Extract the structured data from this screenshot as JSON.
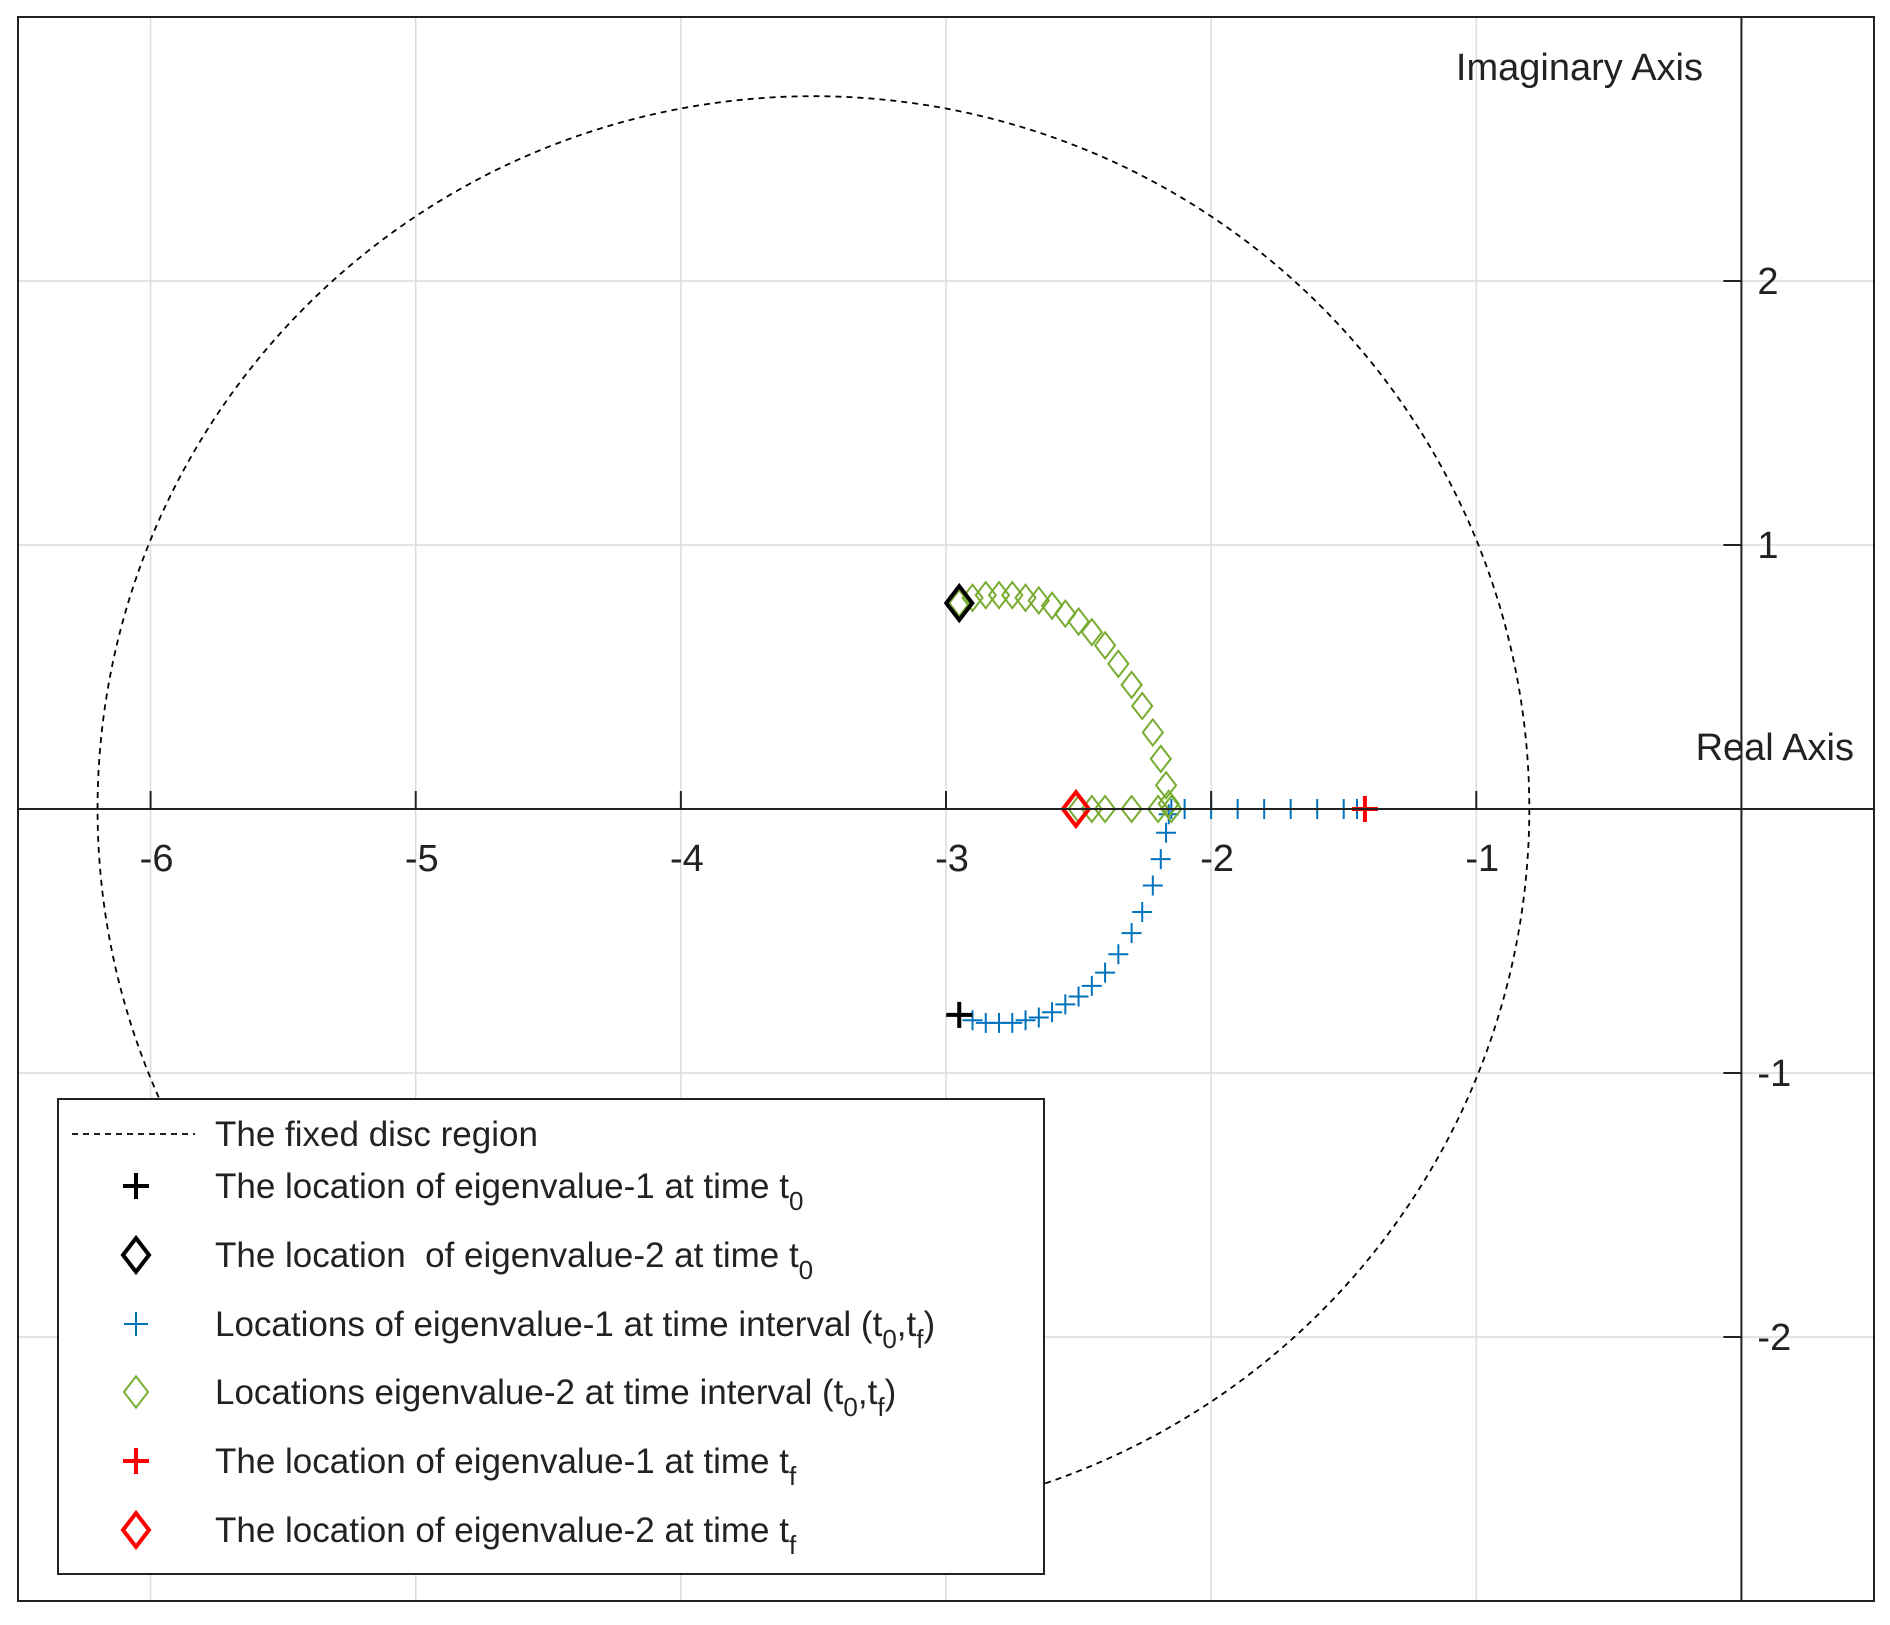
{
  "chart_data": {
    "type": "scatter",
    "xlabel": "Real Axis",
    "ylabel": "Imaginary Axis",
    "xlim": [
      -6.5,
      0.5
    ],
    "ylim": [
      -3,
      3
    ],
    "xticks": [
      -6,
      -5,
      -4,
      -3,
      -2,
      -1
    ],
    "yticks": [
      -2,
      -1,
      1,
      2
    ],
    "grid": true,
    "legend": "lower left",
    "circle": {
      "name": [
        "The fixed disc region"
      ],
      "center_x": -3.5,
      "center_y": 0,
      "radius": 2.7,
      "color": "#000000"
    },
    "series": [
      {
        "name": [
          "The location of eigenvalue-1 at time t",
          "0"
        ],
        "marker": "plus",
        "color": "#000000",
        "x": [
          -2.95
        ],
        "y": [
          -0.78
        ]
      },
      {
        "name": [
          "The location  of eigenvalue-2 at time t",
          "0"
        ],
        "marker": "diamond",
        "color": "#000000",
        "x": [
          -2.95
        ],
        "y": [
          0.78
        ]
      },
      {
        "name": [
          "Locations of eigenvalue-1 at time interval (t",
          "0",
          ",t",
          "f",
          ")"
        ],
        "marker": "plus",
        "color": "#0072bd",
        "x": [
          -2.95,
          -2.9,
          -2.85,
          -2.8,
          -2.75,
          -2.7,
          -2.65,
          -2.6,
          -2.55,
          -2.5,
          -2.45,
          -2.4,
          -2.35,
          -2.3,
          -2.26,
          -2.22,
          -2.19,
          -2.17,
          -2.16,
          -2.15,
          -2.1,
          -2.0,
          -1.9,
          -1.8,
          -1.7,
          -1.6,
          -1.5,
          -1.45
        ],
        "y": [
          -0.78,
          -0.8,
          -0.81,
          -0.81,
          -0.81,
          -0.8,
          -0.79,
          -0.77,
          -0.74,
          -0.71,
          -0.67,
          -0.62,
          -0.55,
          -0.47,
          -0.39,
          -0.29,
          -0.19,
          -0.09,
          -0.02,
          0,
          0,
          0,
          0,
          0,
          0,
          0,
          0,
          0
        ]
      },
      {
        "name": [
          "Locations eigenvalue-2 at time interval (t",
          "0",
          ",t",
          "f",
          ")"
        ],
        "marker": "diamond",
        "color": "#77ac30",
        "x": [
          -2.95,
          -2.9,
          -2.85,
          -2.8,
          -2.75,
          -2.7,
          -2.65,
          -2.6,
          -2.55,
          -2.5,
          -2.45,
          -2.4,
          -2.35,
          -2.3,
          -2.26,
          -2.22,
          -2.19,
          -2.17,
          -2.16,
          -2.15,
          -2.2,
          -2.3,
          -2.4,
          -2.45,
          -2.5
        ],
        "y": [
          0.78,
          0.8,
          0.81,
          0.81,
          0.81,
          0.8,
          0.79,
          0.77,
          0.74,
          0.71,
          0.67,
          0.62,
          0.55,
          0.47,
          0.39,
          0.29,
          0.19,
          0.09,
          0.02,
          0,
          0,
          0,
          0,
          0,
          0
        ]
      },
      {
        "name": [
          "The location of eigenvalue-1 at time t",
          "f"
        ],
        "marker": "plus",
        "color": "#ff0000",
        "x": [
          -1.42
        ],
        "y": [
          0
        ]
      },
      {
        "name": [
          "The location of eigenvalue-2 at time t",
          "f"
        ],
        "marker": "diamond",
        "color": "#ff0000",
        "x": [
          -2.51
        ],
        "y": [
          0
        ]
      }
    ]
  }
}
